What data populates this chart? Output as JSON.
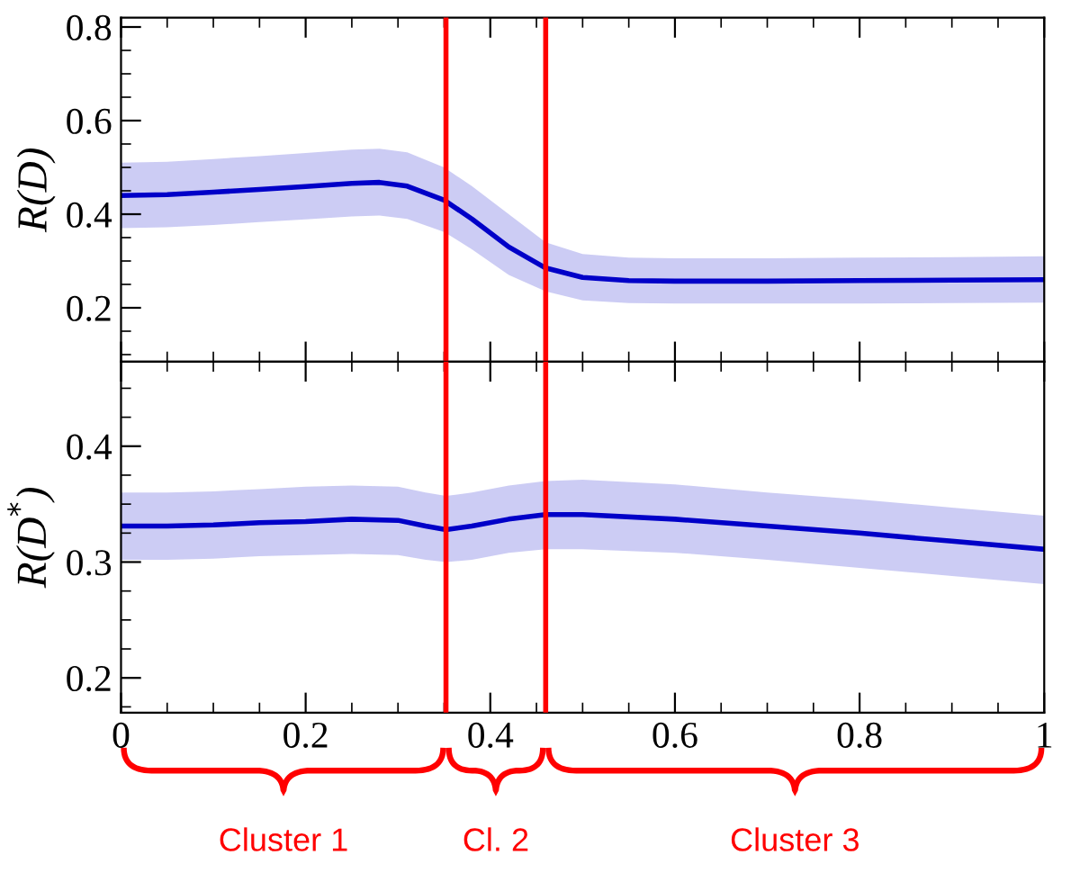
{
  "chart_data": [
    {
      "type": "line",
      "ylabel": "R(D)",
      "xlim": [
        0,
        1
      ],
      "xticks": [
        0,
        0.2,
        0.4,
        0.6,
        0.8,
        1
      ],
      "ylim": [
        0.085,
        0.82
      ],
      "yticks": [
        0.2,
        0.4,
        0.6,
        0.8
      ],
      "tick_labels": "y",
      "grid": false,
      "legend": false,
      "series": [
        {
          "color": "#0000c8",
          "x": [
            0,
            0.05,
            0.1,
            0.15,
            0.2,
            0.25,
            0.28,
            0.31,
            0.35,
            0.38,
            0.42,
            0.46,
            0.5,
            0.55,
            0.6,
            0.7,
            0.8,
            0.9,
            1
          ],
          "values": [
            0.44,
            0.442,
            0.447,
            0.453,
            0.459,
            0.466,
            0.468,
            0.46,
            0.43,
            0.39,
            0.33,
            0.285,
            0.265,
            0.258,
            0.257,
            0.257,
            0.258,
            0.259,
            0.26
          ],
          "lower": [
            0.37,
            0.372,
            0.377,
            0.383,
            0.389,
            0.395,
            0.397,
            0.39,
            0.362,
            0.325,
            0.27,
            0.235,
            0.216,
            0.21,
            0.209,
            0.209,
            0.209,
            0.21,
            0.211
          ],
          "upper": [
            0.51,
            0.512,
            0.518,
            0.524,
            0.531,
            0.538,
            0.54,
            0.532,
            0.5,
            0.46,
            0.4,
            0.34,
            0.315,
            0.307,
            0.306,
            0.306,
            0.307,
            0.308,
            0.31
          ]
        }
      ],
      "ref_lines": [
        {
          "axis": "x",
          "value": 0.352,
          "color": "#ff0000"
        },
        {
          "axis": "x",
          "value": 0.46,
          "color": "#ff0000"
        }
      ]
    },
    {
      "type": "line",
      "ylabel": "R(D$^{*}$)",
      "xlim": [
        0,
        1
      ],
      "xticks": [
        0,
        0.2,
        0.4,
        0.6,
        0.8,
        1
      ],
      "ylim": [
        0.17,
        0.473
      ],
      "yticks": [
        0.2,
        0.3,
        0.4
      ],
      "grid": false,
      "legend": false,
      "series": [
        {
          "color": "#0000c8",
          "x": [
            0,
            0.05,
            0.1,
            0.15,
            0.2,
            0.25,
            0.3,
            0.33,
            0.352,
            0.38,
            0.42,
            0.46,
            0.5,
            0.6,
            0.7,
            0.8,
            0.9,
            1
          ],
          "values": [
            0.331,
            0.331,
            0.332,
            0.334,
            0.335,
            0.337,
            0.336,
            0.331,
            0.328,
            0.331,
            0.337,
            0.341,
            0.341,
            0.337,
            0.331,
            0.325,
            0.318,
            0.311
          ],
          "lower": [
            0.302,
            0.302,
            0.303,
            0.305,
            0.306,
            0.307,
            0.306,
            0.302,
            0.3,
            0.302,
            0.308,
            0.311,
            0.311,
            0.308,
            0.302,
            0.295,
            0.288,
            0.281
          ],
          "upper": [
            0.36,
            0.36,
            0.361,
            0.363,
            0.365,
            0.366,
            0.365,
            0.36,
            0.357,
            0.36,
            0.366,
            0.37,
            0.371,
            0.367,
            0.36,
            0.354,
            0.347,
            0.34
          ]
        }
      ],
      "ref_lines": [
        {
          "axis": "x",
          "value": 0.352,
          "color": "#ff0000"
        },
        {
          "axis": "x",
          "value": 0.46,
          "color": "#ff0000"
        }
      ],
      "annotations": [
        "Cluster 1",
        "Cl. 2",
        "Cluster 3"
      ]
    }
  ]
}
